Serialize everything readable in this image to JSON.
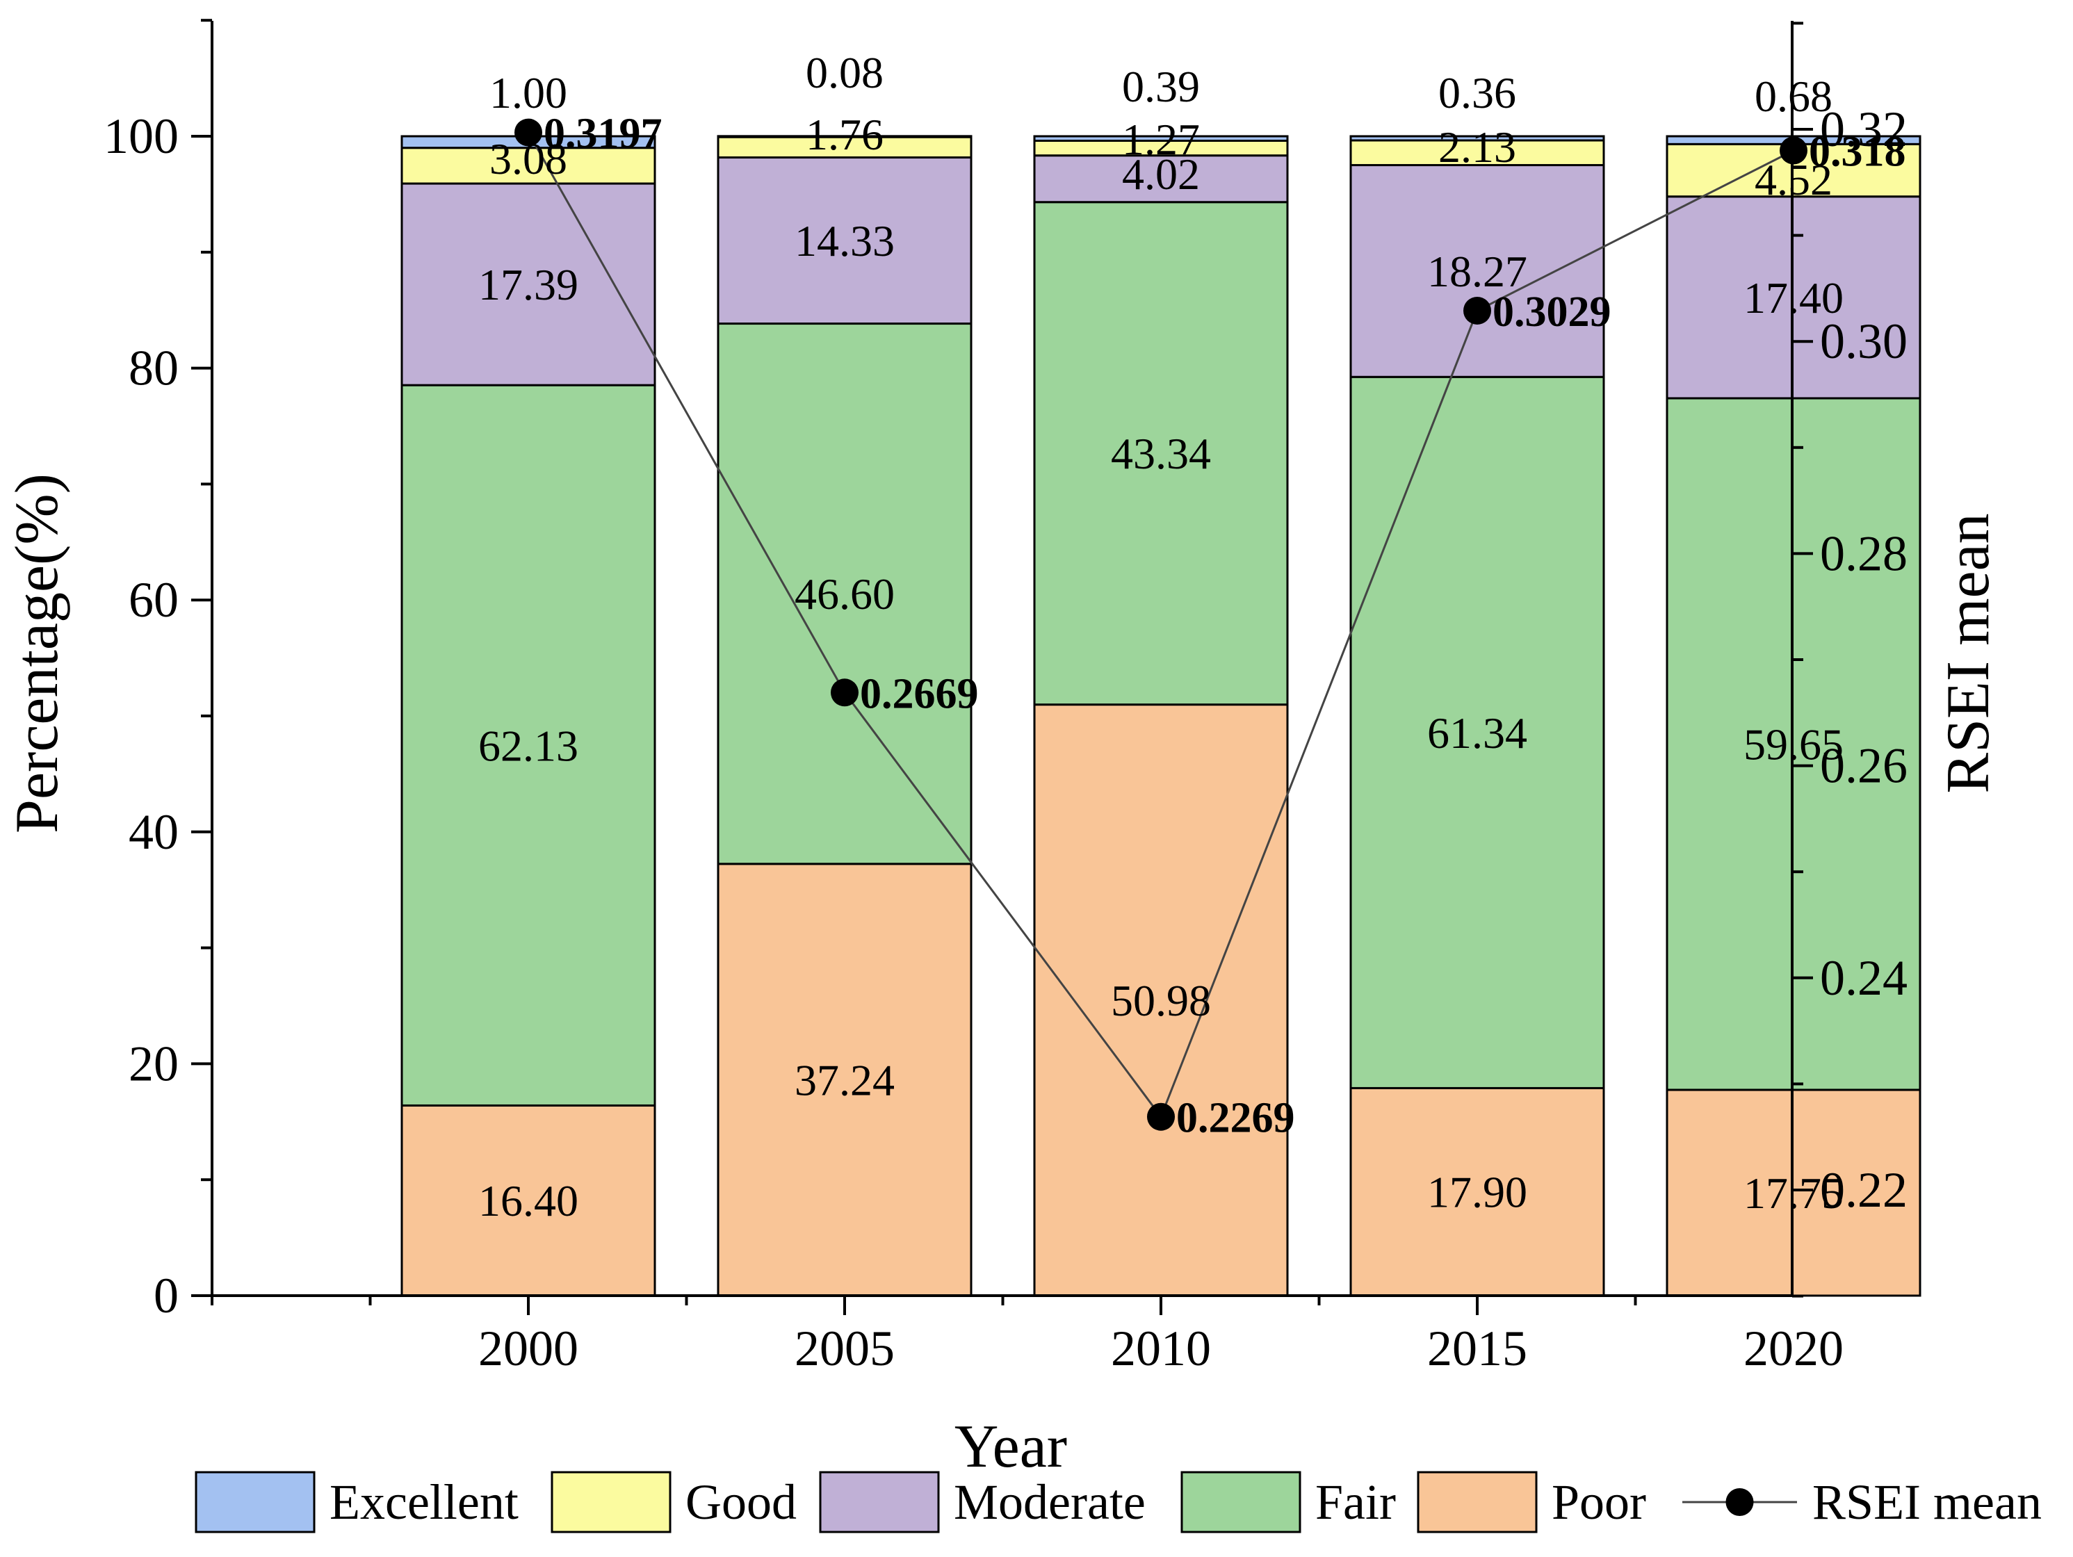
{
  "chart_data": {
    "type": "bar",
    "stacked": true,
    "categories": [
      "2000",
      "2005",
      "2010",
      "2015",
      "2020"
    ],
    "series": [
      {
        "name": "Poor",
        "color": "#f9c597",
        "values": [
          16.4,
          37.24,
          50.98,
          17.9,
          17.75
        ],
        "labels": [
          "16.40",
          "37.24",
          "50.98",
          "17.90",
          "17.75"
        ]
      },
      {
        "name": "Fair",
        "color": "#9dd59b",
        "values": [
          62.13,
          46.6,
          43.34,
          61.34,
          59.65
        ],
        "labels": [
          "62.13",
          "46.60",
          "43.34",
          "61.34",
          "59.65"
        ]
      },
      {
        "name": "Moderate",
        "color": "#c0b0d6",
        "values": [
          17.39,
          14.33,
          4.02,
          18.27,
          17.4
        ],
        "labels": [
          "17.39",
          "14.33",
          "4.02",
          "18.27",
          "17.40"
        ]
      },
      {
        "name": "Good",
        "color": "#fbfb9f",
        "values": [
          3.08,
          1.76,
          1.27,
          2.13,
          4.52
        ],
        "labels": [
          "3.08",
          "1.76",
          "1.27",
          "2.13",
          "4.52"
        ]
      },
      {
        "name": "Excellent",
        "color": "#a3c1f1",
        "values": [
          1.0,
          0.08,
          0.39,
          0.36,
          0.68
        ],
        "labels": [
          "1.00",
          "0.08",
          "0.39",
          "0.36",
          "0.68"
        ]
      }
    ],
    "line_series": {
      "name": "RSEI mean",
      "axis": "right",
      "values": [
        0.3197,
        0.2669,
        0.2269,
        0.3029,
        0.318
      ],
      "labels": [
        "0.3197",
        "0.2669",
        "0.2269",
        "0.3029",
        "0.318"
      ]
    },
    "xlabel": "Year",
    "ylabel": "Percentage(%)",
    "y2label": "RSEI mean",
    "ylim": [
      0,
      110
    ],
    "y2lim": [
      0.21,
      0.33
    ],
    "yticks": [
      "0",
      "20",
      "40",
      "60",
      "80",
      "100"
    ],
    "y2ticks": [
      "0.22",
      "0.24",
      "0.26",
      "0.28",
      "0.30",
      "0.32"
    ],
    "legend": {
      "position": "bottom",
      "items": [
        "Excellent",
        "Good",
        "Moderate",
        "Fair",
        "Poor",
        "RSEI mean"
      ]
    }
  }
}
